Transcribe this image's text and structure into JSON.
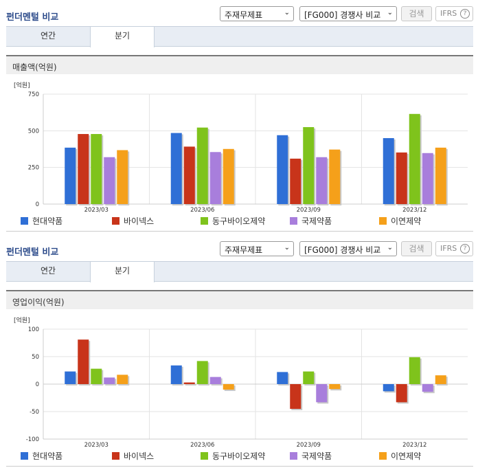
{
  "sections": [
    {
      "title": "펀더멘털 비교",
      "select_statement": "주재무제표",
      "select_compare": "[FG000] 경쟁사 비교",
      "search_label": "검색",
      "ifrs_label": "IFRS",
      "ifrs_help": "?",
      "tabs": [
        "연간",
        "분기"
      ],
      "active_tab": "분기",
      "chart_title": "매출액(억원)"
    },
    {
      "title": "펀더멘털 비교",
      "select_statement": "주재무제표",
      "select_compare": "[FG000] 경쟁사 비교",
      "search_label": "검색",
      "ifrs_label": "IFRS",
      "ifrs_help": "?",
      "tabs": [
        "연간",
        "분기"
      ],
      "active_tab": "분기",
      "chart_title": "영업이익(억원)"
    }
  ],
  "colors": {
    "현대약품": "#2f6fd6",
    "바이넥스": "#c8341a",
    "동구바이오제약": "#7fc31c",
    "국제약품": "#a87edc",
    "이연제약": "#f5a01a"
  },
  "chart_data": [
    {
      "type": "bar",
      "title": "매출액(억원)",
      "unit_label": "[억원]",
      "categories": [
        "2023/03",
        "2023/06",
        "2023/09",
        "2023/12"
      ],
      "ylim": [
        0,
        750
      ],
      "yticks": [
        "0",
        "250",
        "500",
        "750"
      ],
      "ytick_values": [
        0,
        250,
        500,
        750
      ],
      "grid": true,
      "legend_position": "bottom",
      "series": [
        {
          "name": "현대약품",
          "values": [
            385,
            485,
            470,
            450
          ]
        },
        {
          "name": "바이넥스",
          "values": [
            478,
            392,
            310,
            352
          ]
        },
        {
          "name": "동구바이오제약",
          "values": [
            478,
            522,
            525,
            615
          ]
        },
        {
          "name": "국제약품",
          "values": [
            320,
            355,
            320,
            348
          ]
        },
        {
          "name": "이연제약",
          "values": [
            368,
            376,
            372,
            385
          ]
        }
      ]
    },
    {
      "type": "bar",
      "title": "영업이익(억원)",
      "unit_label": "[억원]",
      "categories": [
        "2023/03",
        "2023/06",
        "2023/09",
        "2023/12"
      ],
      "ylim": [
        -100,
        100
      ],
      "yticks": [
        "100",
        "50",
        "0",
        "-50",
        "-100"
      ],
      "ytick_values": [
        100,
        50,
        0,
        -50,
        -100
      ],
      "grid": true,
      "legend_position": "bottom",
      "series": [
        {
          "name": "현대약품",
          "values": [
            23,
            34,
            22,
            -13
          ]
        },
        {
          "name": "바이넥스",
          "values": [
            81,
            3,
            -45,
            -33
          ]
        },
        {
          "name": "동구바이오제약",
          "values": [
            28,
            42,
            23,
            49
          ]
        },
        {
          "name": "국제약품",
          "values": [
            12,
            13,
            -33,
            -14
          ]
        },
        {
          "name": "이연제약",
          "values": [
            17,
            -10,
            -9,
            16
          ]
        }
      ]
    }
  ]
}
